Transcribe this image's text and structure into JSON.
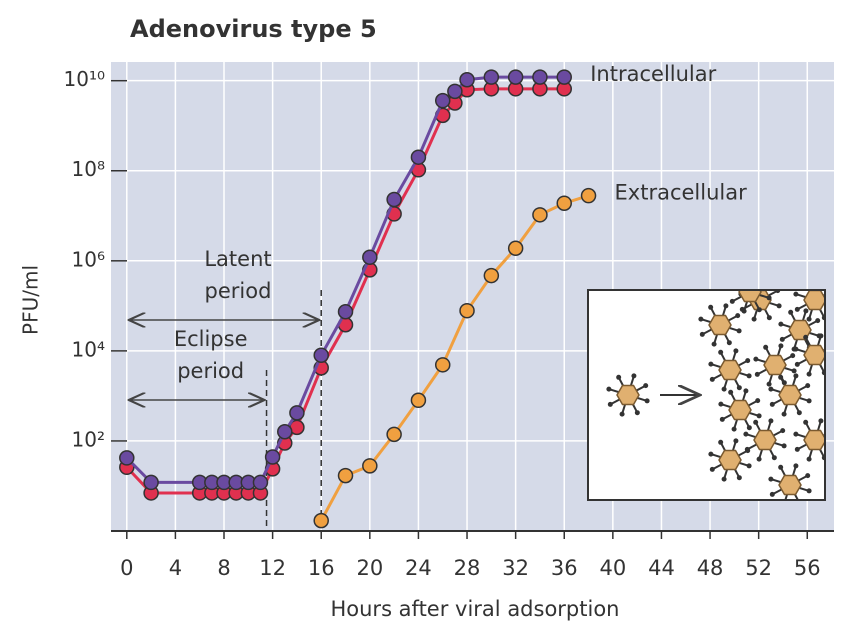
{
  "chart_data": {
    "type": "line",
    "title": "Adenovirus type 5",
    "xlabel": "Hours after viral adsorption",
    "ylabel": "PFU/ml",
    "log_y": true,
    "grid": true,
    "xlim": [
      -1.3,
      58.2
    ],
    "xticks": [
      0,
      4,
      8,
      12,
      16,
      20,
      24,
      28,
      32,
      36,
      40,
      44,
      48,
      52,
      56
    ],
    "ylim": [
      1,
      26000000000
    ],
    "yticks": [
      {
        "value": 100,
        "label": "10²"
      },
      {
        "value": 10000,
        "label": "10⁴"
      },
      {
        "value": 1000000,
        "label": "10⁶"
      },
      {
        "value": 100000000,
        "label": "10⁸"
      },
      {
        "value": 10000000000,
        "label": "10¹⁰"
      }
    ],
    "series": [
      {
        "color": "#e0304f",
        "x": [
          0,
          2,
          6,
          7,
          8,
          9,
          10,
          11,
          12,
          13,
          14,
          16,
          18,
          20,
          22,
          24,
          26,
          27,
          28,
          30,
          32,
          34,
          36
        ],
        "values": [
          26,
          7,
          7,
          7,
          7,
          7,
          7,
          7,
          24,
          90,
          200,
          4200,
          38000,
          630000,
          11000000,
          105000000,
          1700000000,
          3200000000,
          6300000000,
          6600000000,
          6600000000,
          6600000000,
          6600000000
        ]
      },
      {
        "name": "Intracellular",
        "color": "#6a4aa0",
        "x": [
          0,
          2,
          6,
          7,
          8,
          9,
          10,
          11,
          12,
          13,
          14,
          16,
          18,
          20,
          22,
          24,
          26,
          27,
          28,
          30,
          32,
          34,
          36
        ],
        "values": [
          42,
          12,
          12,
          12,
          12,
          12,
          12,
          12,
          44,
          160,
          420,
          8000,
          74000,
          1200000,
          23000000,
          200000000,
          3600000000,
          5800000000,
          10500000000,
          12000000000,
          12000000000,
          12000000000,
          12000000000
        ]
      },
      {
        "name": "Extracellular",
        "color": "#f0a040",
        "x": [
          16,
          18,
          20,
          22,
          24,
          26,
          28,
          30,
          32,
          34,
          36,
          38
        ],
        "values": [
          1.7,
          17,
          28,
          140,
          800,
          4900,
          78000,
          470000,
          1900000,
          10500000,
          19000000,
          28000000
        ]
      }
    ],
    "annotations": [
      {
        "text": [
          "Latent",
          "period"
        ],
        "span": [
          0,
          16
        ]
      },
      {
        "text": [
          "Eclipse",
          "period"
        ],
        "span": [
          0,
          11.5
        ]
      }
    ]
  }
}
